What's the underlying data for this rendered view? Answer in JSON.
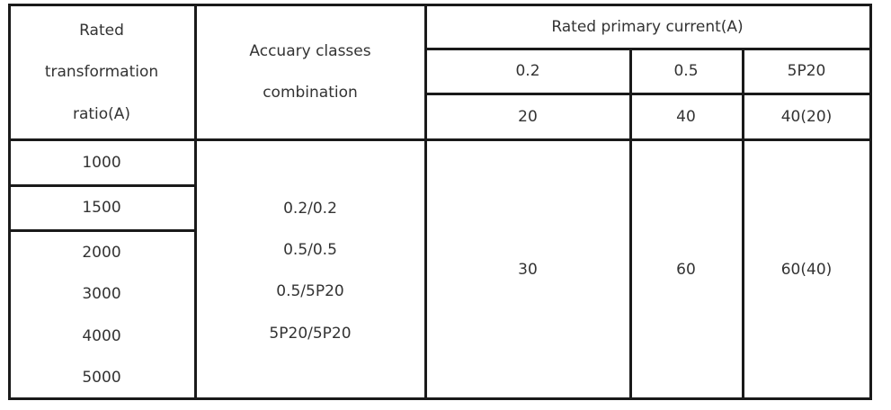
{
  "header": {
    "ratio_label": [
      "Rated",
      "transformation",
      "ratio(A)"
    ],
    "accuracy_label": [
      "Accuary classes",
      "combination"
    ],
    "current_label": "Rated primary current(A)",
    "classes": [
      "0.2",
      "0.5",
      "5P20"
    ],
    "class_currents": [
      "20",
      "40",
      "40(20)"
    ]
  },
  "body": {
    "ratios": [
      "1000",
      "1500",
      "2000",
      "3000",
      "4000",
      "5000"
    ],
    "combinations": [
      "0.2/0.2",
      "0.5/0.5",
      "0.5/5P20",
      "5P20/5P20"
    ],
    "currents": [
      "30",
      "60",
      "60(40)"
    ]
  }
}
